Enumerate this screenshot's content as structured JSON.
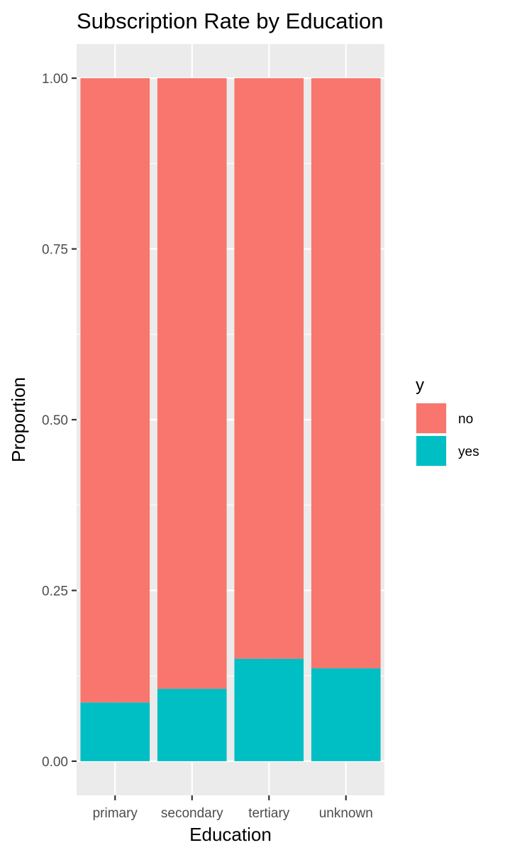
{
  "chart_data": {
    "type": "bar",
    "stacked": true,
    "title": "Subscription Rate by Education",
    "xlabel": "Education",
    "ylabel": "Proportion",
    "categories": [
      "primary",
      "secondary",
      "tertiary",
      "unknown"
    ],
    "series": [
      {
        "name": "no",
        "color": "#F8766D",
        "values": [
          0.914,
          0.894,
          0.85,
          0.864
        ]
      },
      {
        "name": "yes",
        "color": "#00BFC4",
        "values": [
          0.086,
          0.106,
          0.15,
          0.136
        ]
      }
    ],
    "ylim": [
      -0.05,
      1.05
    ],
    "yticks": [
      0,
      0.25,
      0.5,
      0.75,
      1
    ],
    "ytick_labels": [
      "0.00",
      "0.25",
      "0.50",
      "0.75",
      "1.00"
    ],
    "grid": true,
    "legend": {
      "title": "y",
      "position": "right"
    },
    "colors": {
      "panel": "#EBEBEB",
      "grid": "#FFFFFF"
    }
  }
}
